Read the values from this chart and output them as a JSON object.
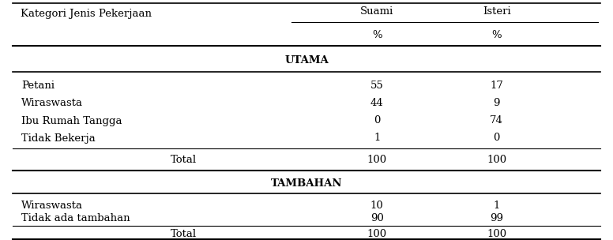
{
  "col_header_row1": [
    "Kategori Jenis Pekerjaan",
    "Suami",
    "Isteri"
  ],
  "col_header_row2": [
    "",
    "%",
    "%"
  ],
  "section1_title": "UTAMA",
  "section1_rows": [
    [
      "Petani",
      "55",
      "17"
    ],
    [
      "Wiraswasta",
      "44",
      "9"
    ],
    [
      "Ibu Rumah Tangga",
      "0",
      "74"
    ],
    [
      "Tidak Bekerja",
      "1",
      "0"
    ]
  ],
  "section1_total": [
    "Total",
    "100",
    "100"
  ],
  "section2_title": "TAMBAHAN",
  "section2_rows": [
    [
      "Wiraswasta",
      "10",
      "1"
    ],
    [
      "Tidak ada tambahan",
      "90",
      "99"
    ]
  ],
  "section2_total": [
    "Total",
    "100",
    "100"
  ],
  "bg_color": "#ffffff",
  "text_color": "#000000",
  "fontsize": 9.5
}
